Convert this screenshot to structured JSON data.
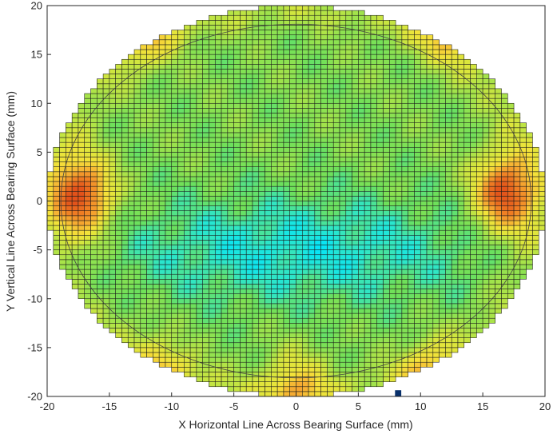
{
  "chart_data": {
    "type": "heatmap",
    "title": "",
    "xlabel": "X Horizontal Line Across Bearing Surface (mm)",
    "ylabel": "Y Vertical Line Across Bearing Surface (mm)",
    "xlim": [
      -20,
      20
    ],
    "ylim": [
      -20,
      20
    ],
    "x_ticks": [
      -20,
      -15,
      -10,
      -5,
      0,
      5,
      10,
      15,
      20
    ],
    "y_ticks": [
      -20,
      -15,
      -10,
      -5,
      0,
      5,
      10,
      15,
      20
    ],
    "x_tick_labels": [
      "-20",
      "-15",
      "-10",
      "-5",
      "0",
      "5",
      "10",
      "15",
      "20"
    ],
    "y_tick_labels": [
      "-20",
      "-15",
      "-10",
      "-5",
      "0",
      "5",
      "10",
      "15",
      "20"
    ],
    "grid_cell_mm": 0.5,
    "surface_radius_mm": 20,
    "reference_circle": {
      "center": [
        0,
        0
      ],
      "rx": 18.9,
      "ry": 18.1
    },
    "colorscale": [
      "#00e5ff",
      "#2ee6c8",
      "#6ee05a",
      "#a6e34a",
      "#dce63c",
      "#f5e13a",
      "#f6b033",
      "#f07f24",
      "#e2521a"
    ],
    "cell_edge_color": "#1a1a1a",
    "hot_spots": [
      {
        "x": -17.2,
        "y": 0.5,
        "level": 1.0
      },
      {
        "x": 16.8,
        "y": 0.8,
        "level": 1.0
      },
      {
        "x": -12.5,
        "y": 19.2,
        "level": 0.8
      },
      {
        "x": 12.5,
        "y": 19.2,
        "level": 0.75
      },
      {
        "x": -11.2,
        "y": -19.2,
        "level": 0.65
      },
      {
        "x": 11.0,
        "y": -19.2,
        "level": 0.65
      },
      {
        "x": 0.0,
        "y": -19.5,
        "level": 0.5
      }
    ],
    "marker": {
      "x": 8.2,
      "y": -20.0,
      "color": "#08306b"
    }
  }
}
